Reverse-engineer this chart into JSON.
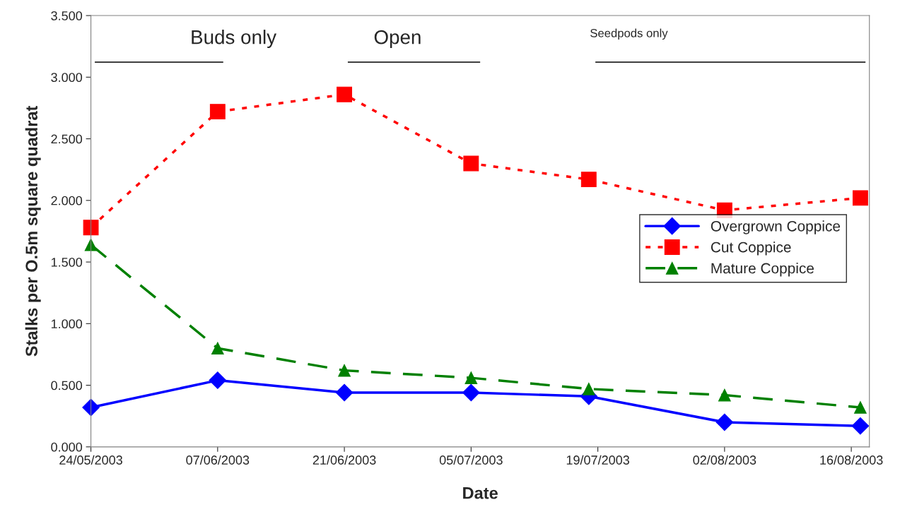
{
  "chart_data": {
    "type": "line",
    "xlabel": "Date",
    "ylabel": "Stalks per O.5m square quadrat",
    "x": [
      "2003-05-24",
      "2003-06-07",
      "2003-06-21",
      "2003-07-05",
      "2003-07-18",
      "2003-08-02",
      "2003-08-17"
    ],
    "series": [
      {
        "name": "Overgrown Coppice",
        "color": "#0000ff",
        "marker": "diamond",
        "line_style": "solid",
        "values": [
          0.32,
          0.54,
          0.44,
          0.44,
          0.41,
          0.2,
          0.17
        ]
      },
      {
        "name": "Cut Coppice",
        "color": "#ff0000",
        "marker": "square",
        "line_style": "dotted",
        "values": [
          1.78,
          2.72,
          2.86,
          2.3,
          2.17,
          1.92,
          2.02
        ]
      },
      {
        "name": "Mature Coppice",
        "color": "#008000",
        "marker": "triangle",
        "line_style": "dashed",
        "values": [
          1.64,
          0.8,
          0.62,
          0.56,
          0.47,
          0.42,
          0.32
        ]
      }
    ],
    "xlim": [
      "2003-05-24",
      "2003-08-18"
    ],
    "xticks": [
      {
        "value": "2003-05-24",
        "label": "24/05/2003"
      },
      {
        "value": "2003-06-07",
        "label": "07/06/2003"
      },
      {
        "value": "2003-06-21",
        "label": "21/06/2003"
      },
      {
        "value": "2003-07-05",
        "label": "05/07/2003"
      },
      {
        "value": "2003-07-19",
        "label": "19/07/2003"
      },
      {
        "value": "2003-08-02",
        "label": "02/08/2003"
      },
      {
        "value": "2003-08-16",
        "label": "16/08/2003"
      }
    ],
    "ylim": [
      0,
      3.5
    ],
    "yticks": [
      {
        "value": 0,
        "label": "0.000"
      },
      {
        "value": 0.5,
        "label": "0.500"
      },
      {
        "value": 1,
        "label": "1.000"
      },
      {
        "value": 1.5,
        "label": "1.500"
      },
      {
        "value": 2,
        "label": "2.000"
      },
      {
        "value": 2.5,
        "label": "2.500"
      },
      {
        "value": 3,
        "label": "3.000"
      },
      {
        "value": 3.5,
        "label": "3.500"
      }
    ],
    "annotations": [
      "Buds only",
      "Open",
      "Seedpods only"
    ],
    "grid": false,
    "legend": "right"
  }
}
